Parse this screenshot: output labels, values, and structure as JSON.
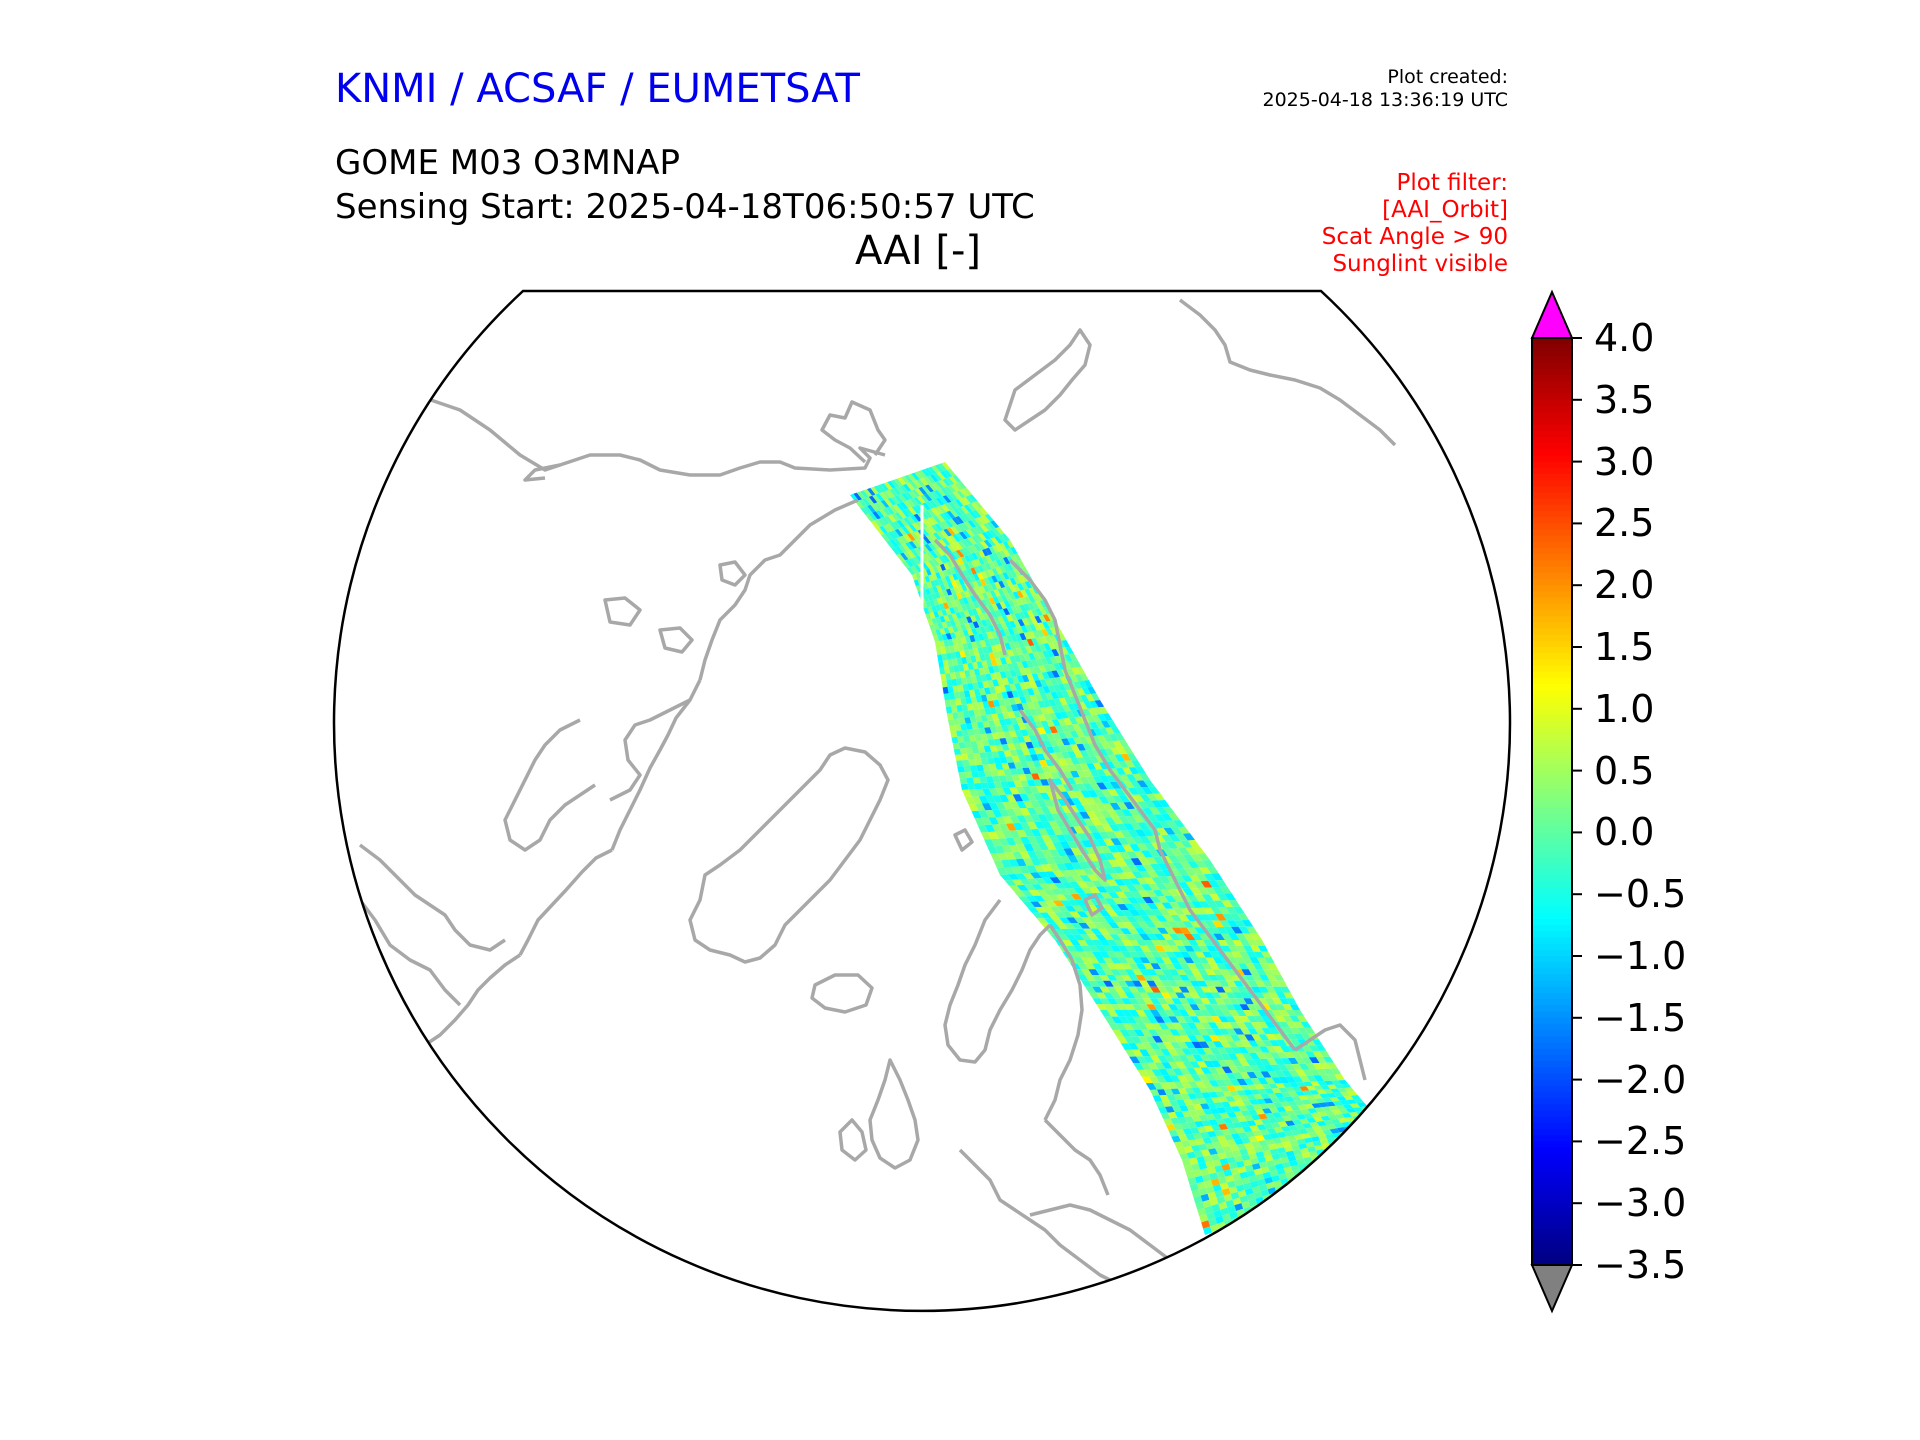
{
  "header": {
    "org": "KNMI / ACSAF / EUMETSAT",
    "created_label": "Plot created:",
    "created_value": "2025-04-18 13:36:19 UTC",
    "product": "GOME M03 O3MNAP",
    "sensing": "Sensing Start: 2025-04-18T06:50:57 UTC",
    "variable": "AAI [-]"
  },
  "filters": [
    "Plot filter:",
    "[AAI_Orbit]",
    "Scat Angle > 90",
    "Sunglint visible"
  ],
  "colors": {
    "org": "#0000ee",
    "filter": "#ff0000",
    "coast": "#a8a8a8",
    "over": "#ff00ff",
    "under": "#808080"
  },
  "colorbar": {
    "min": -3.5,
    "max": 4.0,
    "ticks": [
      "4.0",
      "3.5",
      "3.0",
      "2.5",
      "2.0",
      "1.5",
      "1.0",
      "0.5",
      "0.0",
      "−0.5",
      "−1.0",
      "−1.5",
      "−2.0",
      "−2.5",
      "−3.0",
      "−3.5"
    ],
    "tick_values": [
      4.0,
      3.5,
      3.0,
      2.5,
      2.0,
      1.5,
      1.0,
      0.5,
      0.0,
      -0.5,
      -1.0,
      -1.5,
      -2.0,
      -2.5,
      -3.0,
      -3.5
    ],
    "colormap": "jet"
  },
  "map": {
    "projection": "north-polar-stereographic",
    "swath_typical_aai_range": [
      -0.8,
      0.8
    ]
  }
}
